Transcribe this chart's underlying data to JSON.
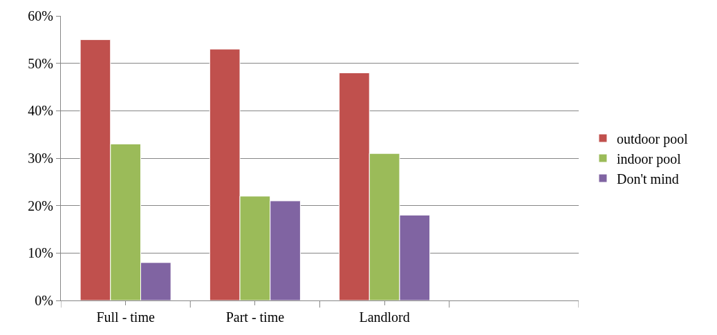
{
  "chart_data": {
    "type": "bar",
    "categories": [
      "Full - time",
      "Part - time",
      "Landlord",
      null
    ],
    "series": [
      {
        "name": "outdoor pool",
        "color": "#c0504d",
        "values": [
          55,
          53,
          48,
          null
        ]
      },
      {
        "name": "indoor pool",
        "color": "#9bbb59",
        "values": [
          33,
          22,
          31,
          null
        ]
      },
      {
        "name": "Don't mind",
        "color": "#8064a2",
        "values": [
          8,
          21,
          18,
          null
        ]
      }
    ],
    "ylim": [
      0,
      60
    ],
    "yticks": [
      {
        "value": 0,
        "label": "0%"
      },
      {
        "value": 10,
        "label": "10%"
      },
      {
        "value": 20,
        "label": "20%"
      },
      {
        "value": 30,
        "label": "30%"
      },
      {
        "value": 40,
        "label": "40%"
      },
      {
        "value": 50,
        "label": "50%"
      },
      {
        "value": 60,
        "label": "60%"
      }
    ],
    "grid": "y",
    "legend": "right"
  }
}
